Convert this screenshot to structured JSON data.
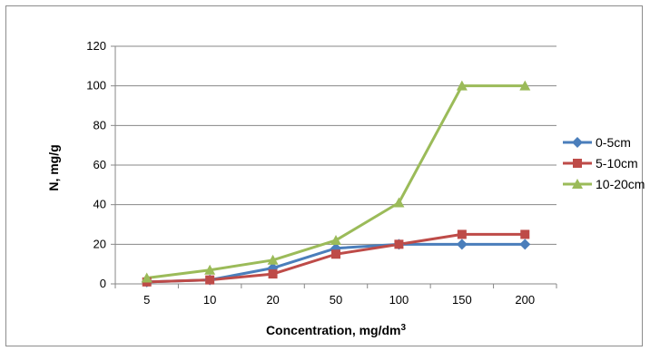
{
  "chart_data": {
    "type": "line",
    "categories": [
      "5",
      "10",
      "20",
      "50",
      "100",
      "150",
      "200"
    ],
    "series": [
      {
        "name": "0-5cm",
        "values": [
          1,
          2,
          8,
          18,
          20,
          20,
          20
        ],
        "color": "#4a7ebb",
        "marker": "diamond"
      },
      {
        "name": "5-10cm",
        "values": [
          1,
          2,
          5,
          15,
          20,
          25,
          25
        ],
        "color": "#be4b48",
        "marker": "square"
      },
      {
        "name": "10-20cm",
        "values": [
          3,
          7,
          12,
          22,
          41,
          100,
          100
        ],
        "color": "#9bbb59",
        "marker": "triangle"
      }
    ],
    "ylabel": "N, mg/g",
    "xlabel_text": "Concentration, mg/dm",
    "xlabel_sup": "3",
    "ylim": [
      0,
      120
    ],
    "yticks": [
      "0",
      "20",
      "40",
      "60",
      "80",
      "100",
      "120"
    ],
    "grid": true,
    "legend": "right"
  }
}
